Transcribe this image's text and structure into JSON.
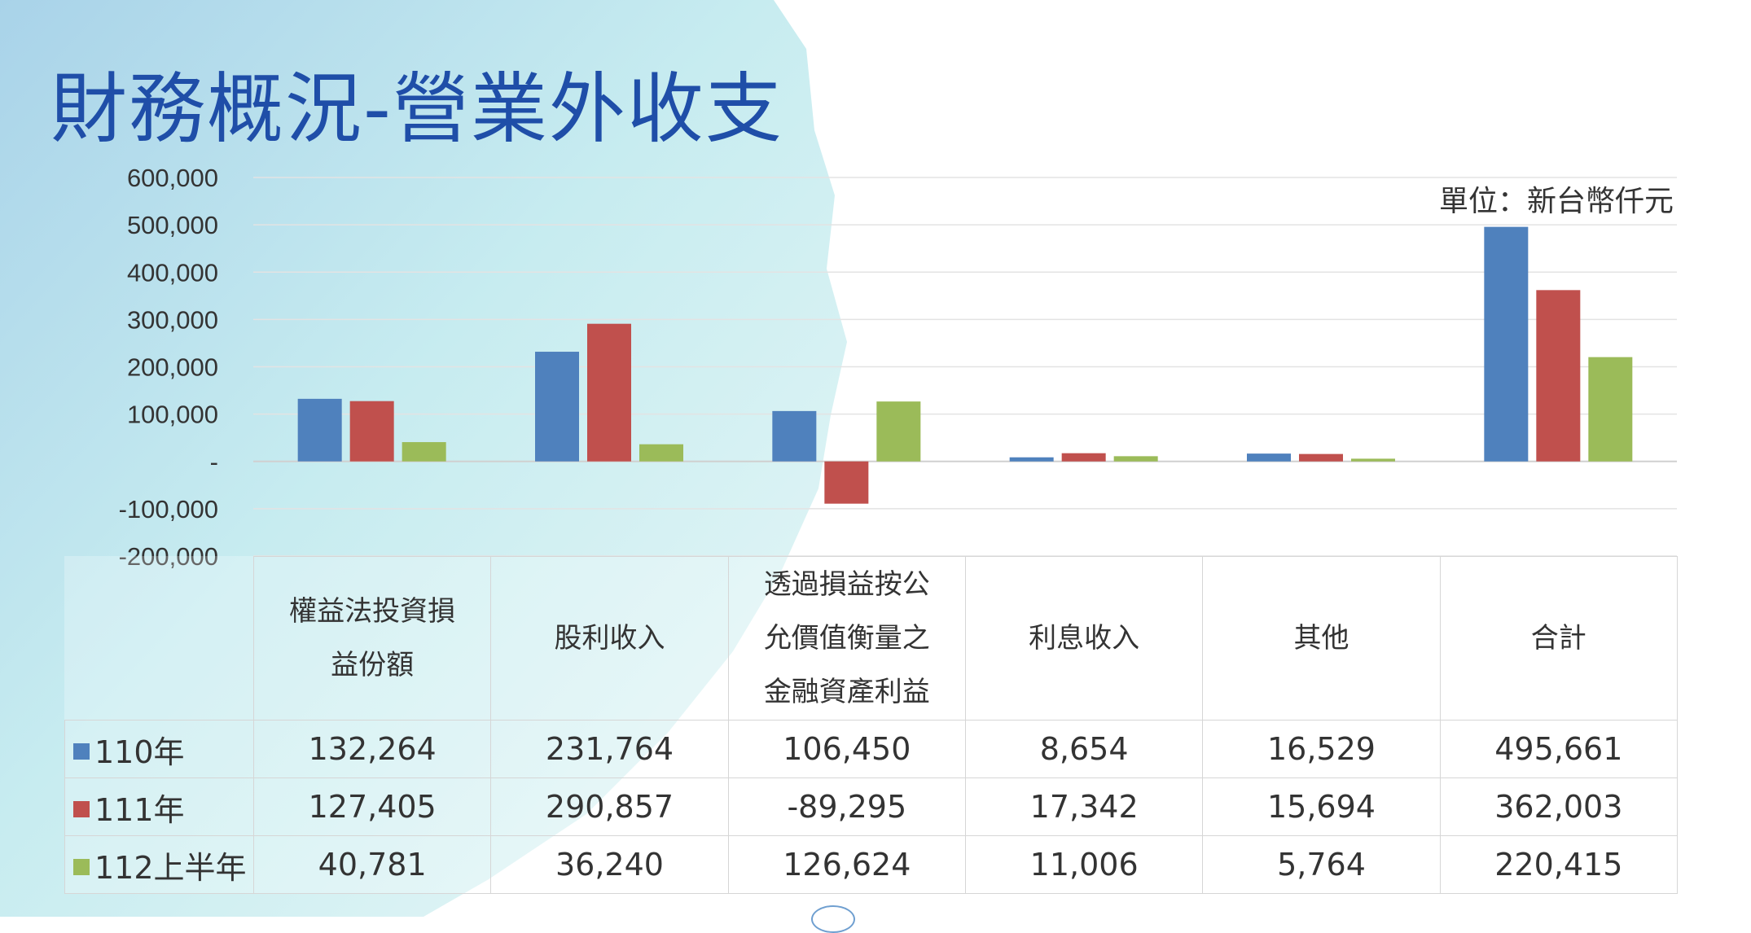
{
  "page": {
    "title": "財務概況-營業外收支",
    "unit_note": "單位：新台幣仟元"
  },
  "chart_data": {
    "type": "bar",
    "categories": [
      "權益法投資損益份額",
      "股利收入",
      "透過損益按公允價值衡量之金融資產利益",
      "利息收入",
      "其他",
      "合計"
    ],
    "category_lines": [
      [
        "權益法投資損",
        "益份額"
      ],
      [
        "股利收入"
      ],
      [
        "透過損益按公",
        "允價值衡量之",
        "金融資產利益"
      ],
      [
        "利息收入"
      ],
      [
        "其他"
      ],
      [
        "合計"
      ]
    ],
    "series": [
      {
        "name": "110年",
        "color": "#4f81bd",
        "values": [
          132264,
          231764,
          106450,
          8654,
          16529,
          495661
        ],
        "labels": [
          "132,264",
          "231,764",
          "106,450",
          "8,654",
          "16,529",
          "495,661"
        ]
      },
      {
        "name": "111年",
        "color": "#c0504d",
        "values": [
          127405,
          290857,
          -89295,
          17342,
          15694,
          362003
        ],
        "labels": [
          "127,405",
          "290,857",
          "-89,295",
          "17,342",
          "15,694",
          "362,003"
        ]
      },
      {
        "name": "112上半年",
        "color": "#9bbb59",
        "values": [
          40781,
          36240,
          126624,
          11006,
          5764,
          220415
        ],
        "labels": [
          "40,781",
          "36,240",
          "126,624",
          "11,006",
          "5,764",
          "220,415"
        ]
      }
    ],
    "ylim": [
      -200000,
      600000
    ],
    "yticks": [
      600000,
      500000,
      400000,
      300000,
      200000,
      100000,
      0,
      -100000,
      -200000
    ],
    "ytick_labels": [
      "600,000",
      "500,000",
      "400,000",
      "300,000",
      "200,000",
      "100,000",
      "-",
      "-100,000",
      "-200,000"
    ],
    "grid": true,
    "legend": "data-table"
  }
}
